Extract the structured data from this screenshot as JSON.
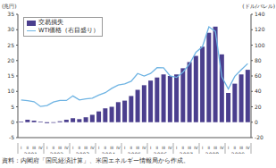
{
  "chart_data": {
    "type": "bar",
    "categories": [
      "I",
      "II",
      "III",
      "IV",
      "I",
      "II",
      "III",
      "IV",
      "I",
      "II",
      "III",
      "IV",
      "I",
      "II",
      "III",
      "IV",
      "I",
      "II",
      "III",
      "IV",
      "I",
      "II",
      "III",
      "IV",
      "I",
      "II",
      "III",
      "IV",
      "I",
      "II",
      "III",
      "IV",
      "I",
      "II",
      "III",
      "IV"
    ],
    "year_labels": [
      "2001",
      "2002",
      "2003",
      "2004",
      "2005",
      "2006",
      "2007",
      "2008",
      "2009"
    ],
    "series": [
      {
        "name": "交易損失",
        "type": "bar",
        "color": "#4b3f8e",
        "values": [
          0.2,
          0.8,
          0.5,
          0.2,
          -0.3,
          -0.2,
          0.3,
          0.8,
          1.3,
          1.0,
          1.6,
          2.4,
          3.5,
          4.5,
          5.0,
          6.5,
          7.0,
          8.5,
          10.5,
          12.0,
          13.5,
          14.5,
          15.5,
          15.0,
          15.5,
          17.5,
          19.5,
          21.5,
          24.5,
          29.0,
          31.0,
          22.0,
          9.5,
          12.5,
          15.5,
          17.0
        ]
      },
      {
        "name": "WTI価格（右目盛り）",
        "type": "line",
        "axis": "y2",
        "color": "#6fb4e3",
        "values": [
          28.8,
          27.9,
          26.6,
          20.4,
          21.6,
          26.3,
          28.3,
          28.2,
          34.1,
          28.9,
          30.2,
          31.2,
          35.2,
          38.3,
          43.9,
          48.3,
          49.7,
          53.2,
          63.2,
          60.0,
          63.3,
          70.7,
          70.5,
          60.0,
          58.1,
          65.0,
          75.4,
          90.7,
          97.9,
          123.8,
          117.8,
          58.7,
          43.1,
          59.6,
          68.2,
          76.1
        ]
      }
    ],
    "ylabel": "(兆円)",
    "y2label": "(ドル/バレル)",
    "ylim": [
      -5,
      35
    ],
    "yticks": [
      -5,
      0,
      5,
      10,
      15,
      20,
      25,
      30,
      35
    ],
    "y2lim": [
      -20,
      140
    ],
    "y2ticks": [
      -20,
      0,
      20,
      40,
      60,
      80,
      100,
      120,
      140
    ],
    "grid": false,
    "legend": "upper left",
    "source": "資料：内閣府「国民経済計算」、米国エネルギー情報局から作成。"
  }
}
